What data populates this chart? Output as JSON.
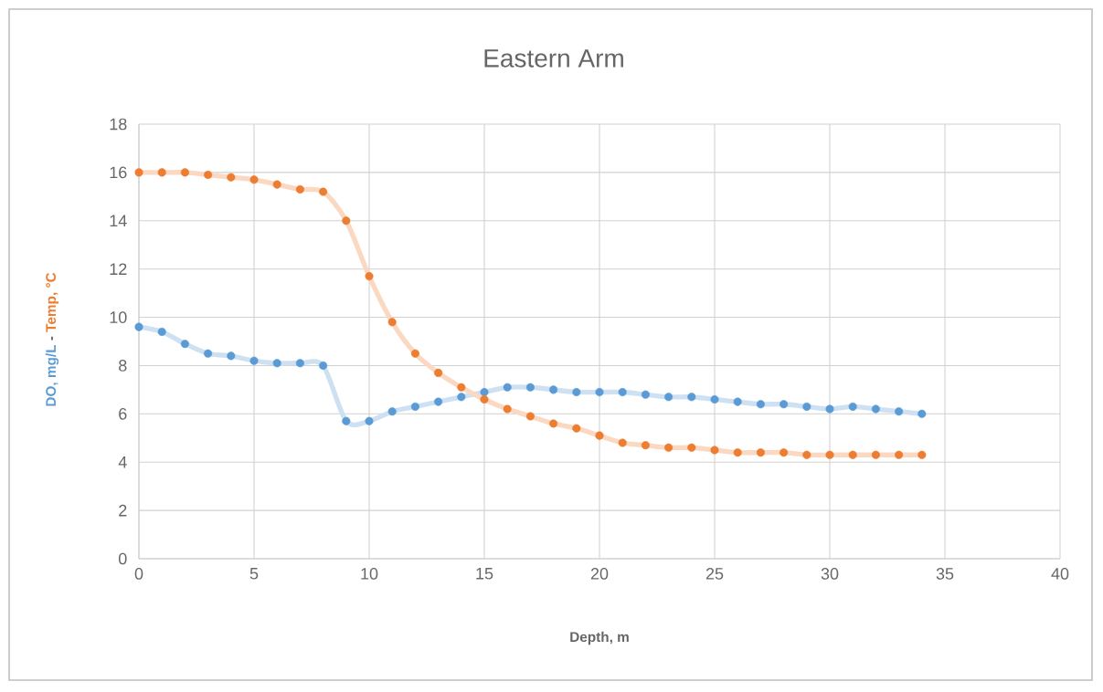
{
  "chart_data": {
    "type": "line",
    "title": "Eastern Arm",
    "xlabel": "Depth, m",
    "ylabel": "-",
    "x": [
      0,
      1,
      2,
      3,
      4,
      5,
      6,
      7,
      8,
      9,
      10,
      11,
      12,
      13,
      14,
      15,
      16,
      17,
      18,
      19,
      20,
      21,
      22,
      23,
      24,
      25,
      26,
      27,
      28,
      29,
      30,
      31,
      32,
      33,
      34
    ],
    "series": [
      {
        "name": "DO, mg/L",
        "color": "#5b9bd5",
        "values": [
          9.6,
          9.4,
          8.9,
          8.5,
          8.4,
          8.2,
          8.1,
          8.1,
          8.0,
          5.7,
          5.7,
          6.1,
          6.3,
          6.5,
          6.7,
          6.9,
          7.1,
          7.1,
          7.0,
          6.9,
          6.9,
          6.9,
          6.8,
          6.7,
          6.7,
          6.6,
          6.5,
          6.4,
          6.4,
          6.3,
          6.2,
          6.3,
          6.2,
          6.1,
          6.0
        ]
      },
      {
        "name": "Temp, °C",
        "color": "#ed7d31",
        "values": [
          16.0,
          16.0,
          16.0,
          15.9,
          15.8,
          15.7,
          15.5,
          15.3,
          15.2,
          14.0,
          11.7,
          9.8,
          8.5,
          7.7,
          7.1,
          6.6,
          6.2,
          5.9,
          5.6,
          5.4,
          5.1,
          4.8,
          4.7,
          4.6,
          4.6,
          4.5,
          4.4,
          4.4,
          4.4,
          4.3,
          4.3,
          4.3,
          4.3,
          4.3,
          4.3
        ]
      }
    ],
    "xlim": [
      0,
      40
    ],
    "xticks": [
      0,
      5,
      10,
      15,
      20,
      25,
      30,
      35,
      40
    ],
    "ylim": [
      0,
      18
    ],
    "yticks": [
      0,
      2,
      4,
      6,
      8,
      10,
      12,
      14,
      16,
      18
    ],
    "grid": true,
    "marker": "circle",
    "line_style": "solid",
    "legend": false
  }
}
